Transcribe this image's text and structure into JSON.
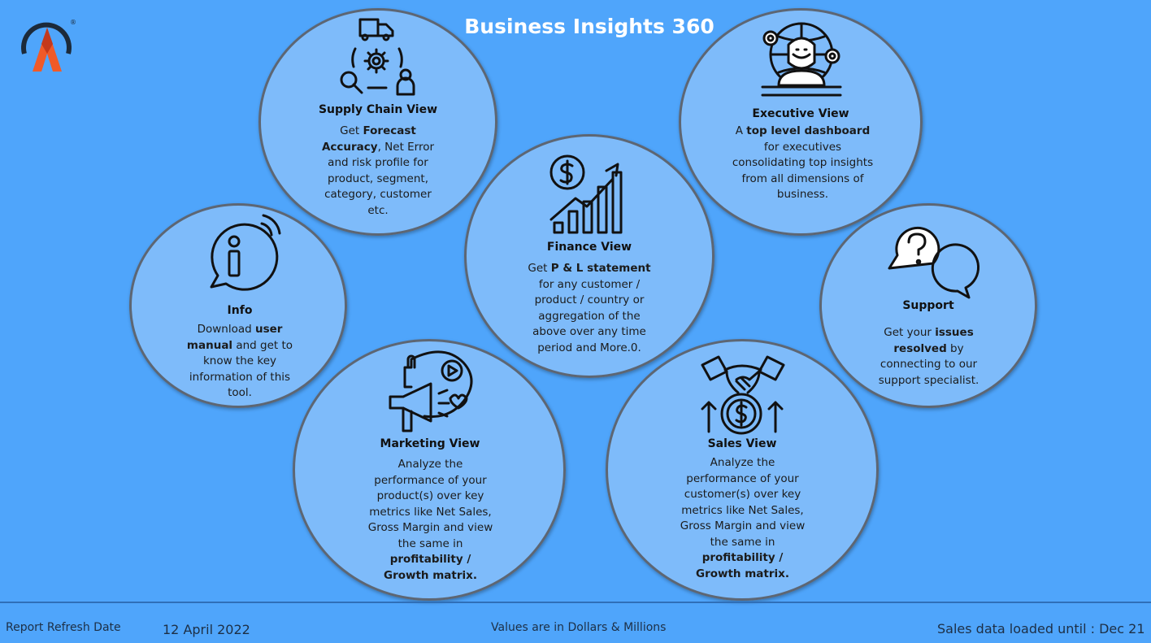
{
  "header": {
    "title": "Business Insights 360"
  },
  "brand": {
    "logo_icon": "atliq-logo-icon",
    "registered_mark": "®",
    "accent_colors": [
      "#f05a28",
      "#1c2a3a"
    ]
  },
  "colors": {
    "background": "#4fa5fb",
    "circle_border": "#5d6673"
  },
  "views": {
    "supply_chain": {
      "title": "Supply Chain View",
      "desc_pre": "Get ",
      "desc_b1": "Forecast Accuracy",
      "desc_post": ", Net Error and risk profile for product, segment, category, customer etc.",
      "icon": "supply-chain-icon"
    },
    "executive": {
      "title": "Executive View",
      "desc_pre": "A ",
      "desc_b1": "top level dashboard",
      "desc_post": " for executives consolidating top insights from all dimensions of business.",
      "icon": "executive-icon"
    },
    "finance": {
      "title": "Finance View",
      "desc_pre": "Get  ",
      "desc_b1": "P & L statement",
      "desc_post": " for any customer / product / country or aggregation of the above over any time period and More.0.",
      "icon": "finance-growth-icon"
    },
    "info": {
      "title": "Info",
      "desc_pre": "Download ",
      "desc_b1": "user manual",
      "desc_post": " and get to know the key information of this tool.",
      "icon": "info-icon"
    },
    "support": {
      "title": "Support",
      "desc_pre": "Get your ",
      "desc_b1": "issues resolved",
      "desc_post": " by connecting to our support specialist.",
      "icon": "support-chat-icon"
    },
    "marketing": {
      "title": "Marketing View",
      "desc_pre": "Analyze the performance of your product(s) over key metrics like Net Sales, Gross Margin and view the same in ",
      "desc_b1": "profitability / Growth matrix.",
      "desc_post": "",
      "icon": "marketing-megaphone-icon"
    },
    "sales": {
      "title": "Sales View",
      "desc_pre": "Analyze the performance of your customer(s) over key metrics like Net Sales, Gross Margin and view the same in ",
      "desc_b1": "profitability / Growth matrix.",
      "desc_post": "",
      "icon": "sales-handshake-icon"
    }
  },
  "footer": {
    "refresh_label": "Report Refresh Date",
    "refresh_date": "12 April 2022",
    "values_note": "Values are in Dollars & Millions",
    "sales_loaded": "Sales data loaded until : Dec 21"
  }
}
